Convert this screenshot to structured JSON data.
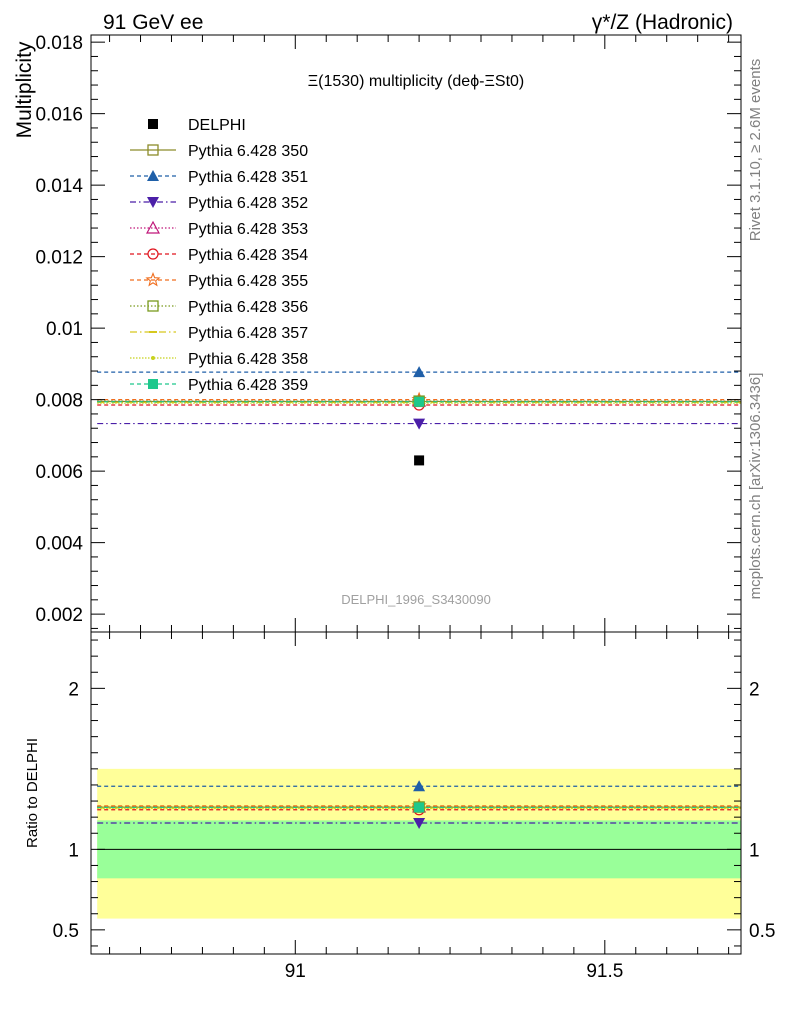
{
  "header": {
    "left": "91 GeV ee",
    "right": "γ*/Z (Hadronic)"
  },
  "side_labels": {
    "rivet": "Rivet 3.1.10, ≥ 2.6M events",
    "mcplots": "mcplots.cern.ch [arXiv:1306.3436]"
  },
  "chart_data": {
    "type": "scatter",
    "title": "Ξ(1530) multiplicity (deϕ-ΞSt0)",
    "analysis_label": "DELPHI_1996_S3430090",
    "xlim": [
      90.67,
      91.72
    ],
    "main": {
      "ylabel": "Multiplicity",
      "ylim": [
        0.0015,
        0.0182
      ],
      "yticks": [
        0.002,
        0.004,
        0.006,
        0.008,
        0.01,
        0.012,
        0.014,
        0.016,
        0.018
      ],
      "ytick_labels": [
        "0.002",
        "0.004",
        "0.006",
        "0.008",
        "0.01",
        "0.012",
        "0.014",
        "0.016",
        "0.018"
      ]
    },
    "ratio": {
      "ylabel": "Ratio to DELPHI",
      "ylim": [
        0.35,
        2.35
      ],
      "yticks": [
        0.5,
        1,
        2
      ],
      "ytick_labels": [
        "0.5",
        "1",
        "2"
      ],
      "band_inner": [
        0.82,
        1.18
      ],
      "band_outer": [
        0.57,
        1.5
      ],
      "inner_color": "#99ff99",
      "outer_color": "#ffff99"
    },
    "xticks": [
      91,
      91.5
    ],
    "xtick_labels": [
      "91",
      "91.5"
    ],
    "x_range": [
      90.68,
      91.72
    ],
    "x_point": 91.2,
    "data": {
      "name": "DELPHI",
      "value": 0.0063,
      "color": "#000000",
      "marker": "square"
    },
    "series": [
      {
        "name": "Pythia 6.428 350",
        "value": 0.00795,
        "color": "#8c8c2a",
        "dash": "",
        "marker": "square-open"
      },
      {
        "name": "Pythia 6.428 351",
        "value": 0.00877,
        "color": "#1f5fa8",
        "dash": "4,3",
        "marker": "triangle-up"
      },
      {
        "name": "Pythia 6.428 352",
        "value": 0.00733,
        "color": "#4b1fa8",
        "dash": "6,3,1.5,3",
        "marker": "triangle-down"
      },
      {
        "name": "Pythia 6.428 353",
        "value": 0.00796,
        "color": "#c0177a",
        "dash": "1.5,2",
        "marker": "triangle-open"
      },
      {
        "name": "Pythia 6.428 354",
        "value": 0.00785,
        "color": "#e0141e",
        "dash": "4,3",
        "marker": "circle-open"
      },
      {
        "name": "Pythia 6.428 355",
        "value": 0.008,
        "color": "#f06e1e",
        "dash": "4,3",
        "marker": "star-open"
      },
      {
        "name": "Pythia 6.428 356",
        "value": 0.00796,
        "color": "#7a9a1e",
        "dash": "1.5,2",
        "marker": "square-open"
      },
      {
        "name": "Pythia 6.428 357",
        "value": 0.00792,
        "color": "#d6c81e",
        "dash": "7,3,1.5,3",
        "marker": "dash"
      },
      {
        "name": "Pythia 6.428 358",
        "value": 0.0079,
        "color": "#c8d21e",
        "dash": "1.5,1.5",
        "marker": "dot"
      },
      {
        "name": "Pythia 6.428 359",
        "value": 0.00794,
        "color": "#1ec88c",
        "dash": "4,3",
        "marker": "square"
      }
    ]
  }
}
